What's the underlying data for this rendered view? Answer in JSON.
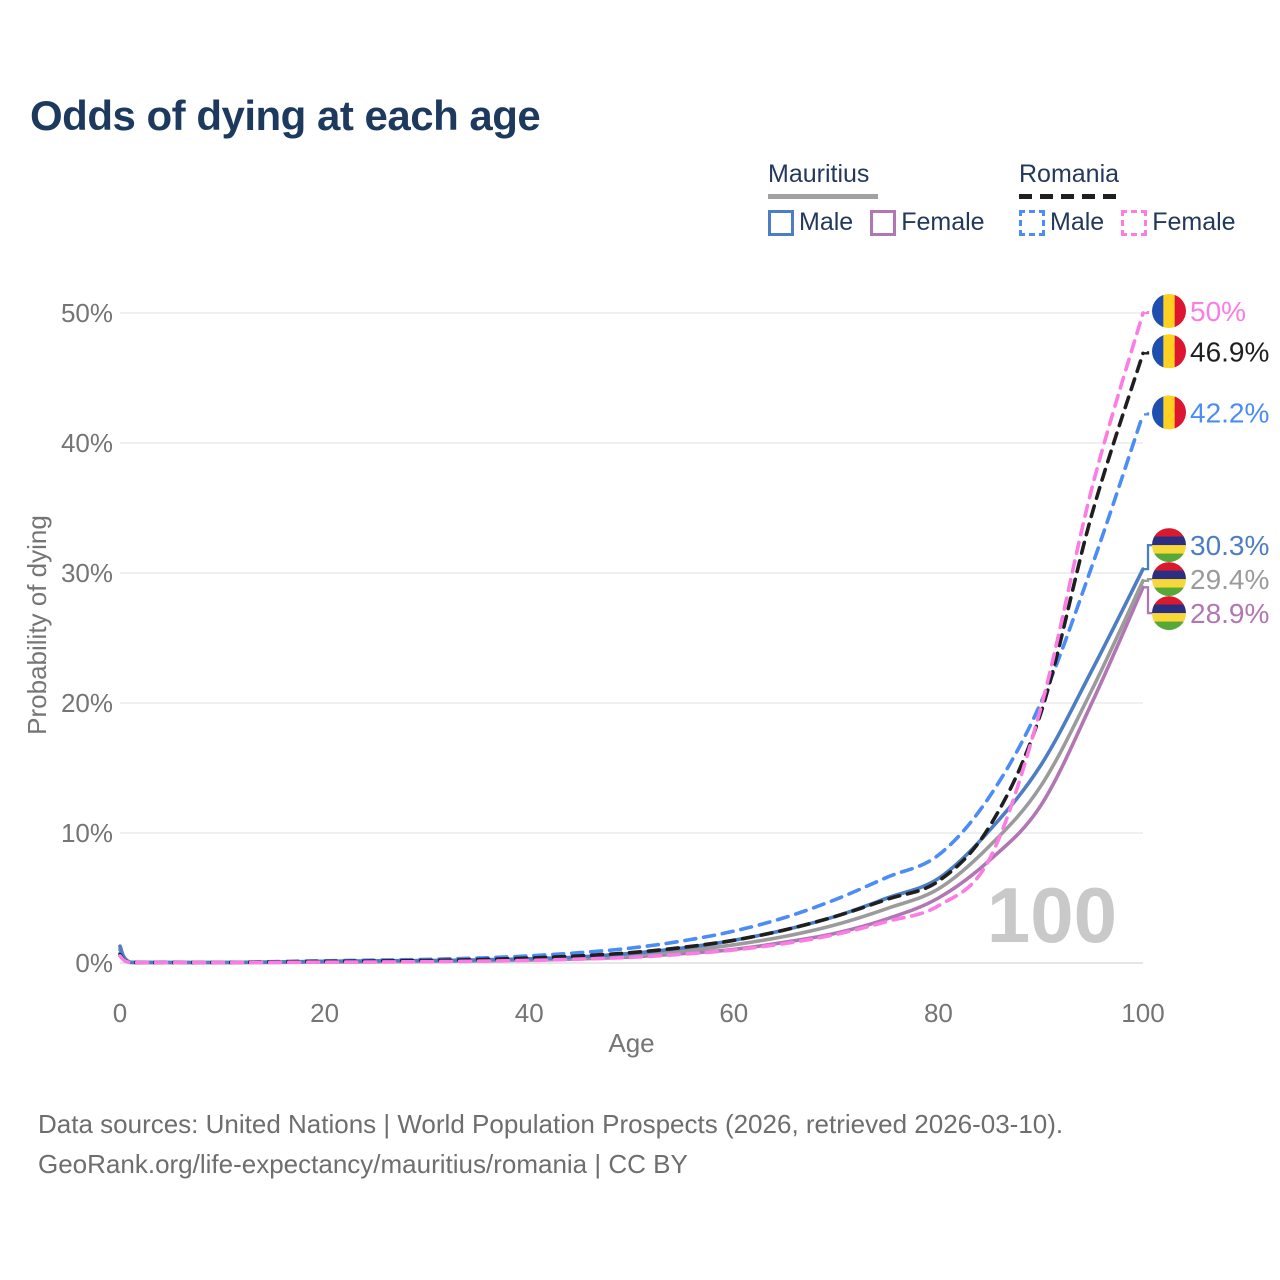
{
  "title": "Odds of dying at each age",
  "legend": {
    "groups": [
      {
        "name": "Mauritius",
        "line_style": "solid",
        "combined_line_color": "#9b9b9b",
        "items": [
          {
            "label": "Male",
            "color": "#4d7ec3"
          },
          {
            "label": "Female",
            "color": "#b077b3"
          }
        ]
      },
      {
        "name": "Romania",
        "line_style": "dashed",
        "combined_line_color": "#1f1f1f",
        "items": [
          {
            "label": "Male",
            "color": "#4b8cf5"
          },
          {
            "label": "Female",
            "color": "#fb7ce4"
          }
        ]
      }
    ]
  },
  "chart_data": {
    "type": "line",
    "title": "Odds of dying at each age",
    "xlabel": "Age",
    "ylabel": "Probability of dying",
    "unit": "%",
    "xlim": [
      0,
      100
    ],
    "ylim": [
      0,
      50
    ],
    "x_ticks": [
      0,
      20,
      40,
      60,
      80,
      100
    ],
    "y_ticks": [
      0,
      10,
      20,
      30,
      40,
      50
    ],
    "y_tick_labels": [
      "0%",
      "10%",
      "20%",
      "30%",
      "40%",
      "50%"
    ],
    "grid": "horizontal-only",
    "legend_position": "top-right",
    "hover_age_watermark": "100",
    "x": [
      0,
      1,
      5,
      10,
      15,
      20,
      25,
      30,
      35,
      40,
      45,
      50,
      55,
      60,
      65,
      70,
      75,
      80,
      85,
      90,
      95,
      100
    ],
    "series": [
      {
        "id": "mauritius-female",
        "name": "Mauritius Female",
        "line": "solid",
        "color": "#b077b3",
        "flag": "mauritius",
        "end_label": "28.9%",
        "values": [
          1.0,
          0.05,
          0.03,
          0.03,
          0.05,
          0.07,
          0.09,
          0.12,
          0.16,
          0.22,
          0.32,
          0.47,
          0.72,
          1.05,
          1.6,
          2.3,
          3.4,
          5.0,
          7.9,
          12.1,
          20.0,
          28.9
        ]
      },
      {
        "id": "mauritius-combined",
        "name": "Mauritius (both sexes)",
        "line": "solid",
        "color": "#9b9b9b",
        "flag": "mauritius",
        "end_label": "29.4%",
        "values": [
          1.15,
          0.055,
          0.035,
          0.035,
          0.065,
          0.1,
          0.13,
          0.16,
          0.2,
          0.27,
          0.4,
          0.6,
          0.93,
          1.4,
          2.05,
          2.95,
          4.2,
          5.7,
          9.0,
          13.6,
          21.0,
          29.4
        ]
      },
      {
        "id": "mauritius-male",
        "name": "Mauritius Male",
        "line": "solid",
        "color": "#4d7ec3",
        "flag": "mauritius",
        "end_label": "30.3%",
        "values": [
          1.3,
          0.06,
          0.04,
          0.04,
          0.08,
          0.13,
          0.16,
          0.19,
          0.24,
          0.32,
          0.47,
          0.75,
          1.15,
          1.75,
          2.55,
          3.6,
          5.0,
          6.5,
          10.2,
          15.2,
          22.5,
          30.3
        ]
      },
      {
        "id": "romania-male",
        "name": "Romania Male",
        "line": "dashed",
        "color": "#4b8cf5",
        "flag": "romania",
        "end_label": "42.2%",
        "values": [
          0.75,
          0.05,
          0.035,
          0.04,
          0.1,
          0.17,
          0.22,
          0.28,
          0.38,
          0.55,
          0.8,
          1.15,
          1.7,
          2.45,
          3.5,
          4.9,
          6.6,
          8.3,
          12.8,
          20.0,
          30.5,
          42.2
        ]
      },
      {
        "id": "romania-combined",
        "name": "Romania (both sexes)",
        "line": "dashed",
        "color": "#1f1f1f",
        "flag": "romania",
        "end_label": "46.9%",
        "values": [
          0.65,
          0.045,
          0.03,
          0.035,
          0.08,
          0.12,
          0.15,
          0.19,
          0.26,
          0.38,
          0.55,
          0.8,
          1.2,
          1.75,
          2.55,
          3.6,
          4.9,
          6.3,
          10.5,
          19.2,
          34.5,
          46.9
        ]
      },
      {
        "id": "romania-female",
        "name": "Romania Female",
        "line": "dashed",
        "color": "#fb7ce4",
        "flag": "romania",
        "end_label": "50%",
        "values": [
          0.55,
          0.04,
          0.025,
          0.03,
          0.05,
          0.065,
          0.08,
          0.1,
          0.14,
          0.2,
          0.3,
          0.44,
          0.68,
          1.0,
          1.5,
          2.2,
          3.2,
          4.4,
          8.0,
          19.6,
          36.5,
          50.0
        ]
      }
    ],
    "flag_colors": {
      "romania": [
        "#1e4fae",
        "#fdd121",
        "#dd1530"
      ],
      "mauritius": [
        "#d8192e",
        "#2a2f83",
        "#f8d838",
        "#57a838"
      ]
    }
  },
  "footer": {
    "line1": "Data sources: United Nations | World Population Prospects (2026, retrieved 2026-03-10).",
    "line2": "GeoRank.org/life-expectancy/mauritius/romania | CC BY"
  }
}
